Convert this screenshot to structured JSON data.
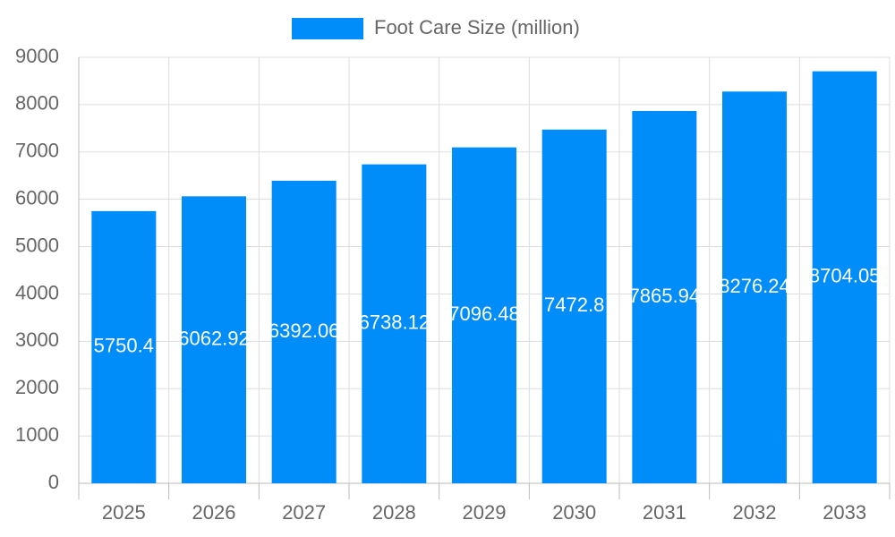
{
  "chart_data": {
    "type": "bar",
    "categories": [
      "2025",
      "2026",
      "2027",
      "2028",
      "2029",
      "2030",
      "2031",
      "2032",
      "2033"
    ],
    "series": [
      {
        "name": "Foot Care Size (million)",
        "color": "#008cf9",
        "values": [
          5750.4,
          6062.92,
          6392.06,
          6738.12,
          7096.48,
          7472.8,
          7865.94,
          8276.24,
          8704.05
        ]
      }
    ],
    "ylim": [
      0,
      9000
    ],
    "yticks": [
      0,
      1000,
      2000,
      3000,
      4000,
      5000,
      6000,
      7000,
      8000,
      9000
    ],
    "grid": true,
    "legend": "top",
    "data_labels": true
  }
}
